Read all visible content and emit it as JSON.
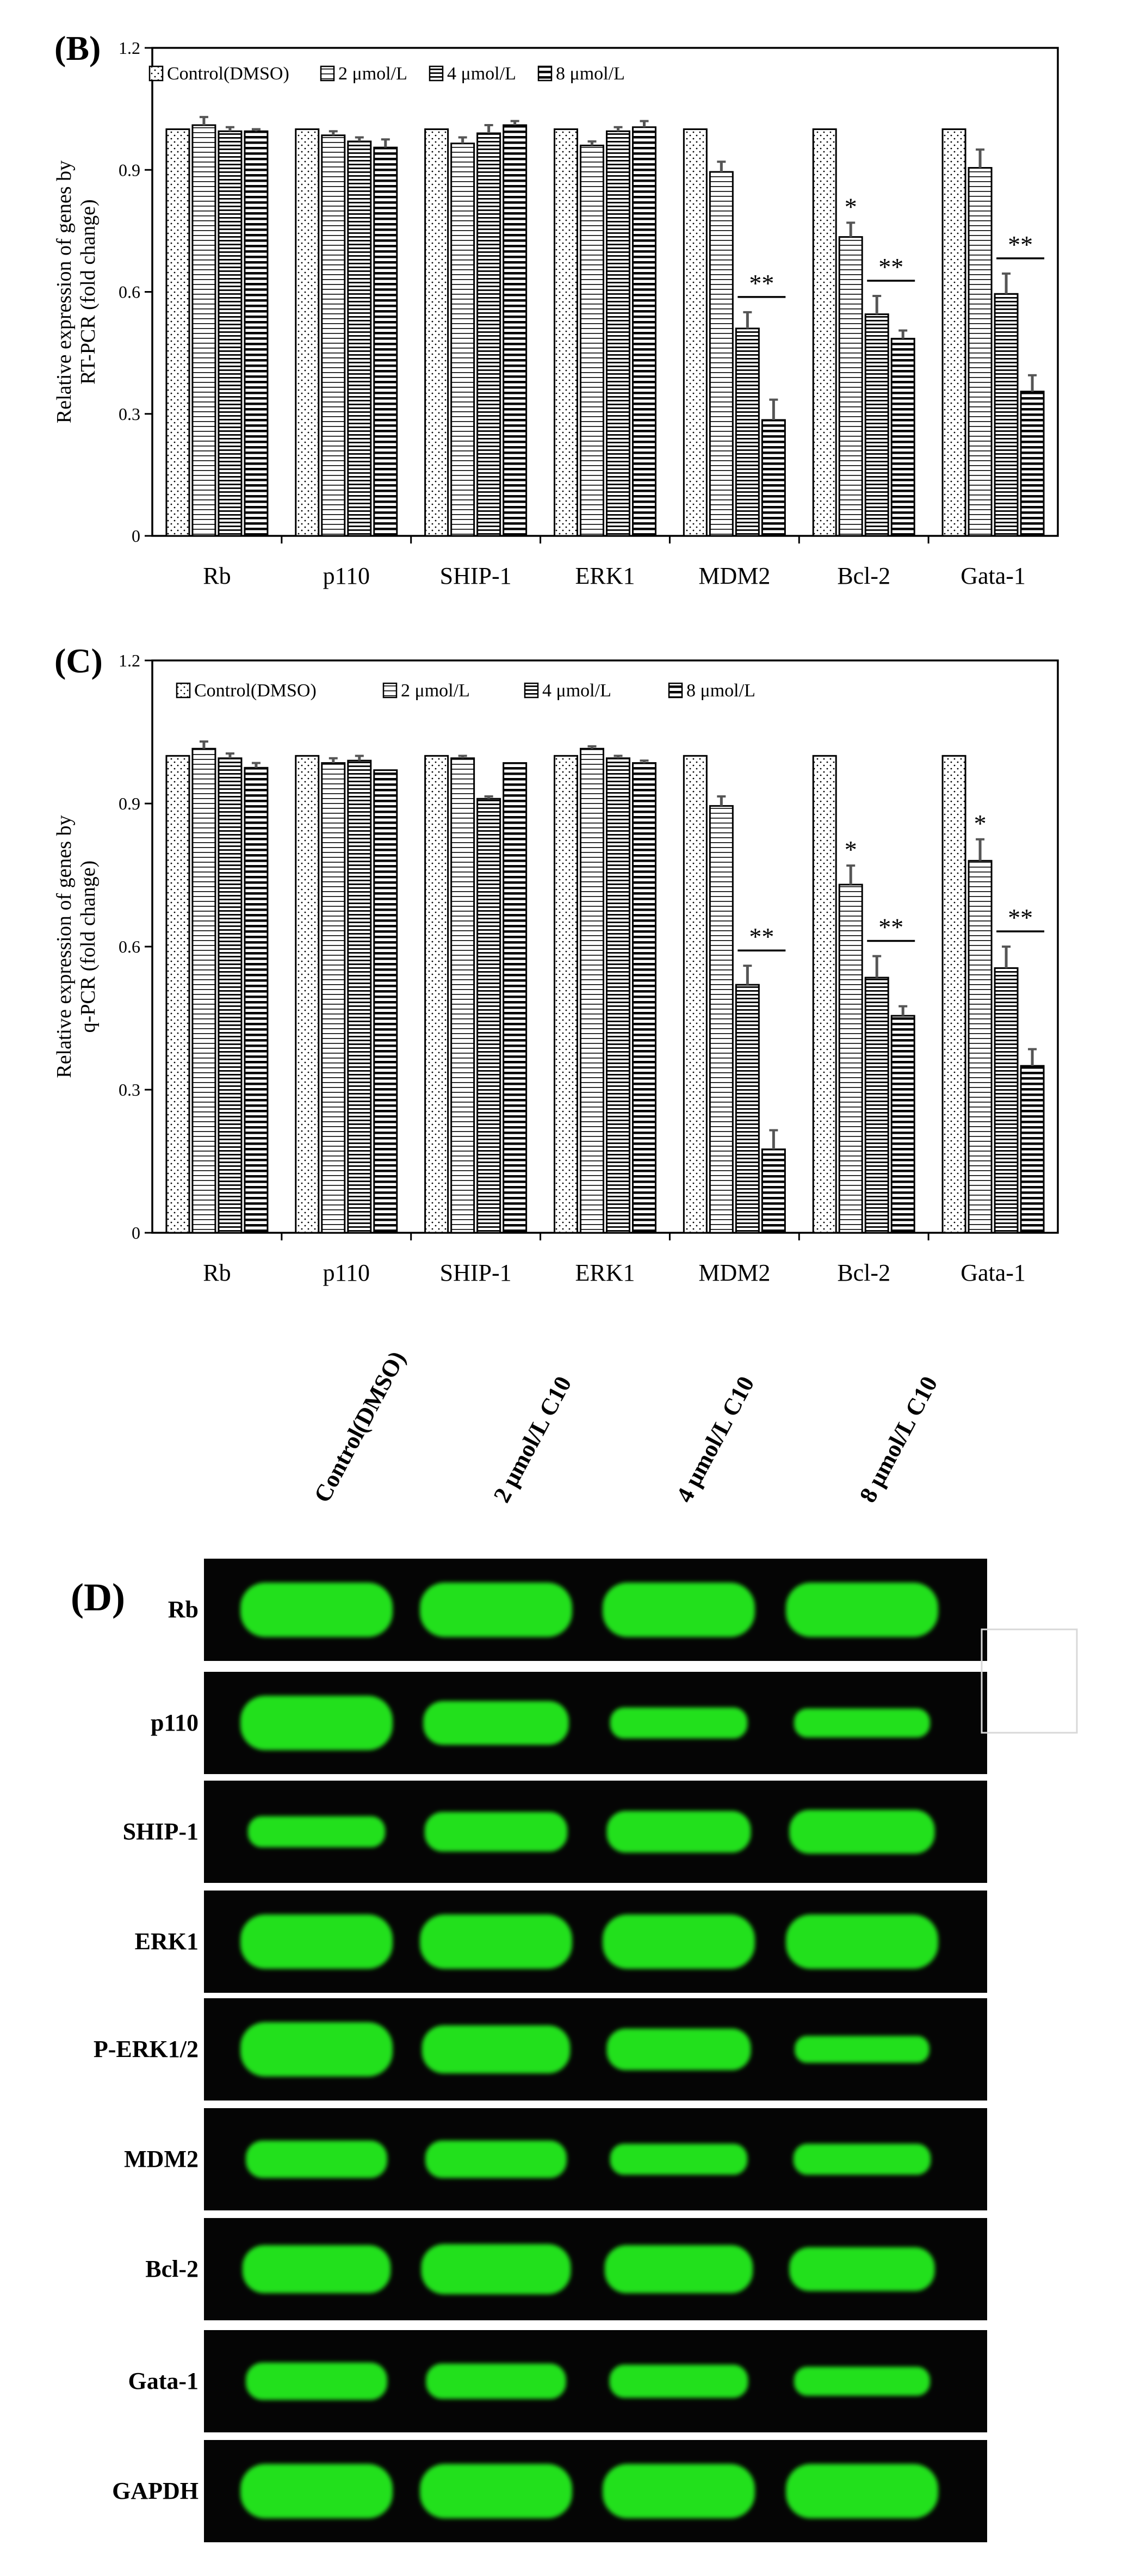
{
  "chart_data": [
    {
      "type": "bar",
      "panel_label": "(B)",
      "title": "",
      "xlabel": "",
      "ylabel_lines": [
        "Relative expression of genes by",
        "RT-PCR  (fold change)"
      ],
      "ylim": [
        0,
        1.2
      ],
      "yticks": [
        "0",
        "0.3",
        "0.6",
        "0.9",
        "1.2"
      ],
      "grid": false,
      "legend": "top-left, inside",
      "categories": [
        "Rb",
        "p110",
        "SHIP-1",
        "ERK1",
        "MDM2",
        "Bcl-2",
        "Gata-1"
      ],
      "series": [
        {
          "name": "Control(DMSO)",
          "values": [
            1.0,
            1.0,
            1.0,
            1.0,
            1.0,
            1.0,
            1.0
          ],
          "errors": [
            0,
            0,
            0,
            0,
            0,
            0,
            0
          ]
        },
        {
          "name": "2 μmol/L",
          "values": [
            1.01,
            0.985,
            0.965,
            0.96,
            0.895,
            0.735,
            0.905
          ],
          "errors": [
            0.02,
            0.01,
            0.015,
            0.01,
            0.025,
            0.035,
            0.045
          ]
        },
        {
          "name": "4 μmol/L",
          "values": [
            0.995,
            0.97,
            0.99,
            0.995,
            0.51,
            0.545,
            0.595
          ],
          "errors": [
            0.01,
            0.01,
            0.02,
            0.01,
            0.04,
            0.045,
            0.05
          ]
        },
        {
          "name": "8 μmol/L",
          "values": [
            0.995,
            0.955,
            1.01,
            1.005,
            0.285,
            0.485,
            0.355
          ],
          "errors": [
            0.005,
            0.02,
            0.01,
            0.015,
            0.05,
            0.02,
            0.04
          ]
        }
      ],
      "annotations": [
        {
          "category": "MDM2",
          "text": "**",
          "type": "bracket"
        },
        {
          "category": "Bcl-2",
          "text": "*",
          "type": "single",
          "series": 1
        },
        {
          "category": "Bcl-2",
          "text": "**",
          "type": "bracket"
        },
        {
          "category": "Gata-1",
          "text": "**",
          "type": "bracket"
        }
      ]
    },
    {
      "type": "bar",
      "panel_label": "(C)",
      "title": "",
      "xlabel": "",
      "ylabel_lines": [
        "Relative expression of genes by",
        "q-PCR  (fold change)"
      ],
      "ylim": [
        0,
        1.2
      ],
      "yticks": [
        "0",
        "0.3",
        "0.6",
        "0.9",
        "1.2"
      ],
      "grid": false,
      "legend": "top, inside",
      "categories": [
        "Rb",
        "p110",
        "SHIP-1",
        "ERK1",
        "MDM2",
        "Bcl-2",
        "Gata-1"
      ],
      "series": [
        {
          "name": "Control(DMSO)",
          "values": [
            1.0,
            1.0,
            1.0,
            1.0,
            1.0,
            1.0,
            1.0
          ],
          "errors": [
            0,
            0,
            0,
            0,
            0,
            0,
            0
          ]
        },
        {
          "name": "2 μmol/L",
          "values": [
            1.015,
            0.985,
            0.995,
            1.015,
            0.895,
            0.73,
            0.78
          ],
          "errors": [
            0.015,
            0.01,
            0.005,
            0.005,
            0.02,
            0.04,
            0.045
          ]
        },
        {
          "name": "4 μmol/L",
          "values": [
            0.995,
            0.99,
            0.91,
            0.995,
            0.52,
            0.535,
            0.555
          ],
          "errors": [
            0.01,
            0.01,
            0.005,
            0.005,
            0.04,
            0.045,
            0.045
          ]
        },
        {
          "name": "8 μmol/L",
          "values": [
            0.975,
            0.97,
            0.985,
            0.985,
            0.175,
            0.455,
            0.35
          ],
          "errors": [
            0.01,
            0.0,
            0.0,
            0.005,
            0.04,
            0.02,
            0.035
          ]
        }
      ],
      "annotations": [
        {
          "category": "MDM2",
          "text": "**",
          "type": "bracket"
        },
        {
          "category": "Bcl-2",
          "text": "*",
          "type": "single",
          "series": 1
        },
        {
          "category": "Bcl-2",
          "text": "**",
          "type": "bracket"
        },
        {
          "category": "Gata-1",
          "text": "*",
          "type": "single",
          "series": 1
        },
        {
          "category": "Gata-1",
          "text": "**",
          "type": "bracket"
        }
      ]
    }
  ],
  "western_blot": {
    "panel_label": "(D)",
    "lanes": [
      "Control(DMSO)",
      "2 μmol/L C10",
      "4 μmol/L C10",
      "8 μmol/L C10"
    ],
    "rows": [
      {
        "label": "Rb",
        "intensity": [
          1.0,
          1.0,
          1.0,
          1.0
        ]
      },
      {
        "label": "p110",
        "intensity": [
          1.0,
          0.75,
          0.45,
          0.4
        ]
      },
      {
        "label": "SHIP-1",
        "intensity": [
          0.45,
          0.65,
          0.7,
          0.75
        ]
      },
      {
        "label": "ERK1",
        "intensity": [
          1.0,
          1.0,
          1.0,
          1.0
        ]
      },
      {
        "label": "P-ERK1/2",
        "intensity": [
          1.0,
          0.85,
          0.7,
          0.35
        ]
      },
      {
        "label": "MDM2",
        "intensity": [
          0.6,
          0.6,
          0.45,
          0.45
        ]
      },
      {
        "label": "Bcl-2",
        "intensity": [
          0.85,
          0.9,
          0.85,
          0.75
        ]
      },
      {
        "label": "Gata-1",
        "intensity": [
          0.6,
          0.55,
          0.5,
          0.4
        ]
      },
      {
        "label": "GAPDH",
        "intensity": [
          1.0,
          1.0,
          1.0,
          1.0
        ]
      }
    ]
  },
  "colors": {
    "band": "#22e01a",
    "blot_background": "#050505",
    "axis": "#000000"
  }
}
